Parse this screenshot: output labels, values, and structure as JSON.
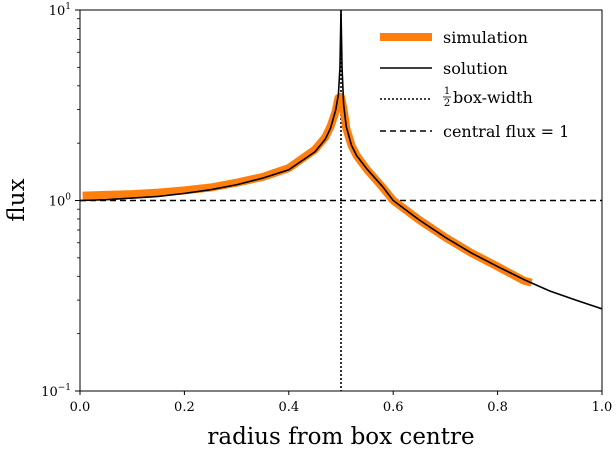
{
  "chart_data": {
    "type": "line",
    "title": "",
    "xlabel": "radius from box centre",
    "ylabel": "flux",
    "xlim": [
      0.0,
      1.0
    ],
    "ylim": [
      0.1,
      10
    ],
    "y_scale": "log",
    "grid": false,
    "legend_position": "top-right",
    "x_ticks": [
      {
        "value": 0.0,
        "label": "0.0"
      },
      {
        "value": 0.2,
        "label": "0.2"
      },
      {
        "value": 0.4,
        "label": "0.4"
      },
      {
        "value": 0.6,
        "label": "0.6"
      },
      {
        "value": 0.8,
        "label": "0.8"
      },
      {
        "value": 1.0,
        "label": "1.0"
      }
    ],
    "y_ticks": [
      {
        "value": 0.1,
        "base": "10",
        "exp": "−1"
      },
      {
        "value": 1,
        "base": "10",
        "exp": "0"
      },
      {
        "value": 10,
        "base": "10",
        "exp": "1"
      }
    ],
    "legend": [
      {
        "key": "simulation",
        "label": "simulation",
        "style": "thick-solid"
      },
      {
        "key": "solution",
        "label": "solution",
        "style": "solid"
      },
      {
        "key": "half_box",
        "label_frac_num": "1",
        "label_frac_den": "2",
        "label_rest": "box-width",
        "style": "dotted"
      },
      {
        "key": "central",
        "label": "central flux = 1",
        "style": "dashed"
      }
    ],
    "series": [
      {
        "key": "simulation",
        "color": "#ff7f0e",
        "x": [
          0.005,
          0.05,
          0.1,
          0.15,
          0.2,
          0.25,
          0.3,
          0.35,
          0.4,
          0.45,
          0.47,
          0.48,
          0.49,
          0.495,
          0.5,
          0.505,
          0.51,
          0.52,
          0.53,
          0.55,
          0.58,
          0.6,
          0.65,
          0.7,
          0.75,
          0.8,
          0.85,
          0.865
        ],
        "y": [
          1.06,
          1.07,
          1.08,
          1.1,
          1.13,
          1.17,
          1.24,
          1.33,
          1.48,
          1.85,
          2.15,
          2.45,
          2.95,
          3.45,
          3.5,
          3.0,
          2.4,
          1.95,
          1.72,
          1.45,
          1.17,
          1.0,
          0.79,
          0.64,
          0.53,
          0.45,
          0.38,
          0.37
        ]
      },
      {
        "key": "solution",
        "color": "#000000",
        "x": [
          0.0,
          0.05,
          0.1,
          0.15,
          0.2,
          0.25,
          0.3,
          0.35,
          0.4,
          0.45,
          0.47,
          0.48,
          0.49,
          0.495,
          0.498,
          0.5,
          0.502,
          0.505,
          0.51,
          0.52,
          0.53,
          0.55,
          0.58,
          0.6,
          0.65,
          0.7,
          0.75,
          0.8,
          0.85,
          0.9,
          0.95,
          1.0
        ],
        "y": [
          1.0,
          1.01,
          1.03,
          1.05,
          1.09,
          1.14,
          1.21,
          1.31,
          1.45,
          1.8,
          2.1,
          2.4,
          3.0,
          3.6,
          5.0,
          10,
          5.0,
          3.2,
          2.45,
          1.95,
          1.72,
          1.46,
          1.18,
          1.0,
          0.79,
          0.64,
          0.53,
          0.45,
          0.385,
          0.335,
          0.3,
          0.27
        ]
      }
    ],
    "reference_lines": [
      {
        "key": "half_box",
        "orientation": "vertical",
        "value": 0.5,
        "style": "dotted"
      },
      {
        "key": "central",
        "orientation": "horizontal",
        "value": 1.0,
        "style": "dashed"
      }
    ]
  }
}
